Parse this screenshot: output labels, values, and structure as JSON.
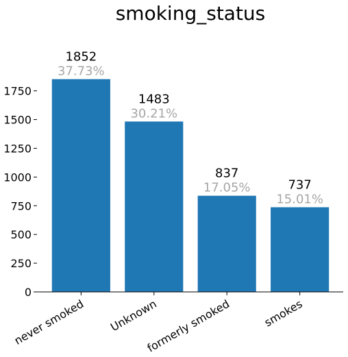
{
  "chart_data": {
    "type": "bar",
    "title": "smoking_status",
    "xlabel": "",
    "ylabel": "",
    "categories": [
      "never smoked",
      "Unknown",
      "formerly smoked",
      "smokes"
    ],
    "values": [
      1852,
      1483,
      837,
      737
    ],
    "value_labels": [
      "1852",
      "1483",
      "837",
      "737"
    ],
    "percent_labels": [
      "37.73%",
      "30.21%",
      "17.05%",
      "15.01%"
    ],
    "ylim": [
      0,
      1852
    ],
    "yticks": [
      0,
      250,
      500,
      750,
      1000,
      1250,
      1500,
      1750
    ],
    "ytick_labels": [
      "0",
      "250",
      "500",
      "750",
      "1000",
      "1250",
      "1500",
      "1750"
    ],
    "grid": false,
    "colors": {
      "bar": "#1f77b4",
      "value_text": "#000000",
      "percent_text": "#a6a6a6"
    }
  }
}
